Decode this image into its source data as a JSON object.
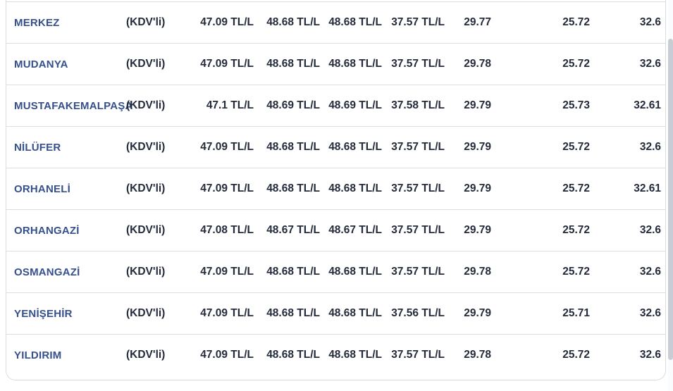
{
  "table": {
    "rows": [
      {
        "district": "MERKEZ",
        "vat_label": "(KDV'li)",
        "values": [
          "47.09 TL/L",
          "48.68 TL/L",
          "48.68 TL/L",
          "37.57 TL/L",
          "29.77",
          "25.72",
          "32.6"
        ]
      },
      {
        "district": "MUDANYA",
        "vat_label": "(KDV'li)",
        "values": [
          "47.09 TL/L",
          "48.68 TL/L",
          "48.68 TL/L",
          "37.57 TL/L",
          "29.78",
          "25.72",
          "32.6"
        ]
      },
      {
        "district": "MUSTAFAKEMALPAŞA",
        "vat_label": "(KDV'li)",
        "values": [
          "47.1 TL/L",
          "48.69 TL/L",
          "48.69 TL/L",
          "37.58 TL/L",
          "29.79",
          "25.73",
          "32.61"
        ]
      },
      {
        "district": "NİLÜFER",
        "vat_label": "(KDV'li)",
        "values": [
          "47.09 TL/L",
          "48.68 TL/L",
          "48.68 TL/L",
          "37.57 TL/L",
          "29.79",
          "25.72",
          "32.6"
        ]
      },
      {
        "district": "ORHANELİ",
        "vat_label": "(KDV'li)",
        "values": [
          "47.09 TL/L",
          "48.68 TL/L",
          "48.68 TL/L",
          "37.57 TL/L",
          "29.79",
          "25.72",
          "32.61"
        ]
      },
      {
        "district": "ORHANGAZİ",
        "vat_label": "(KDV'li)",
        "values": [
          "47.08 TL/L",
          "48.67 TL/L",
          "48.67 TL/L",
          "37.57 TL/L",
          "29.79",
          "25.72",
          "32.6"
        ]
      },
      {
        "district": "OSMANGAZİ",
        "vat_label": "(KDV'li)",
        "values": [
          "47.09 TL/L",
          "48.68 TL/L",
          "48.68 TL/L",
          "37.57 TL/L",
          "29.78",
          "25.72",
          "32.6"
        ]
      },
      {
        "district": "YENİŞEHİR",
        "vat_label": "(KDV'li)",
        "values": [
          "47.09 TL/L",
          "48.68 TL/L",
          "48.68 TL/L",
          "37.56 TL/L",
          "29.79",
          "25.71",
          "32.6"
        ]
      },
      {
        "district": "YILDIRIM",
        "vat_label": "(KDV'li)",
        "values": [
          "47.09 TL/L",
          "48.68 TL/L",
          "48.68 TL/L",
          "37.57 TL/L",
          "29.78",
          "25.72",
          "32.6"
        ]
      }
    ]
  },
  "colors": {
    "district_link": "#35508d",
    "value_text": "#242b3b",
    "row_separator": "#dcdee1",
    "card_border": "#d8dbe0",
    "scrollbar_thumb": "#c8cdd3",
    "background": "#ffffff"
  }
}
